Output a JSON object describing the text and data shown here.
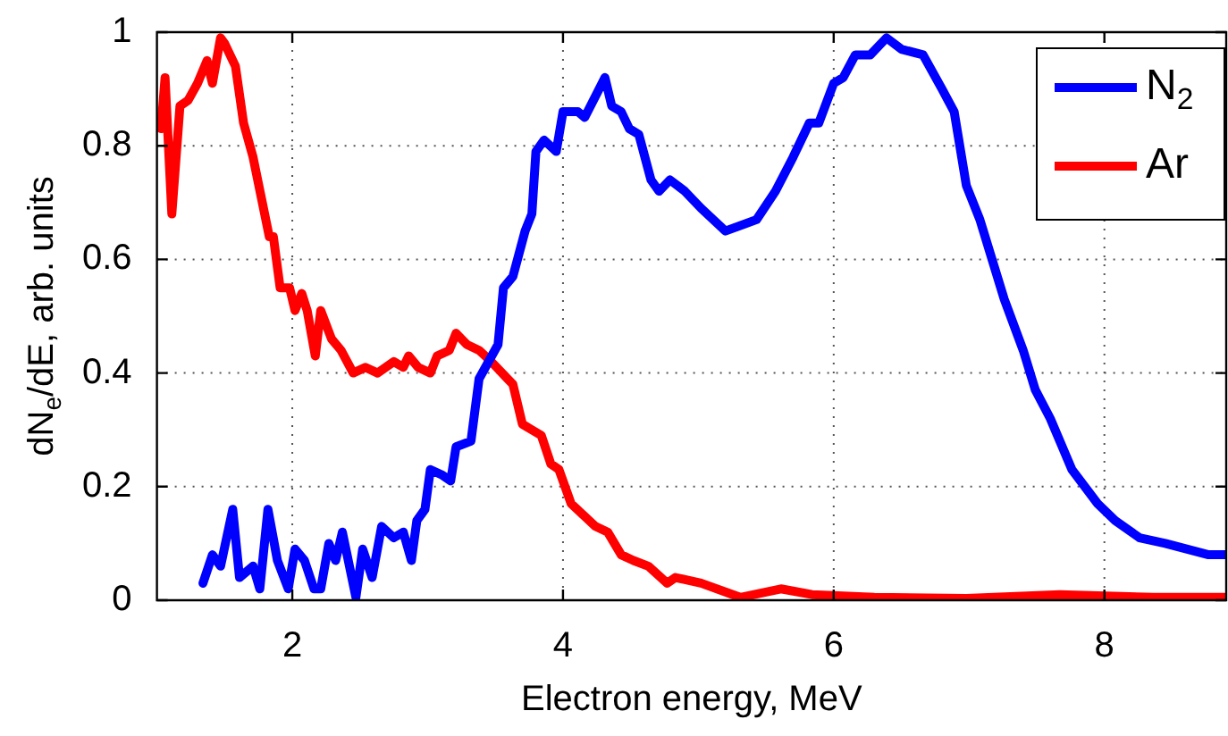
{
  "chart_data": {
    "type": "line",
    "xlabel": "Electron energy, MeV",
    "ylabel": "dN$_{e}$/dE, arb. units",
    "xlim": [
      1,
      8.9
    ],
    "ylim": [
      0,
      1
    ],
    "xticks": [
      2,
      4,
      6,
      8
    ],
    "yticks": [
      0,
      0.2,
      0.4,
      0.6,
      0.8,
      1
    ],
    "grid": true,
    "legend": "top right",
    "marker": "none",
    "line_style": "solid",
    "series": [
      {
        "name": "N$_{2}$",
        "color": "#0000ff",
        "x": [
          1.34,
          1.41,
          1.47,
          1.56,
          1.61,
          1.71,
          1.76,
          1.82,
          1.89,
          1.97,
          2.02,
          2.09,
          2.16,
          2.21,
          2.27,
          2.32,
          2.37,
          2.47,
          2.52,
          2.59,
          2.66,
          2.75,
          2.82,
          2.88,
          2.92,
          2.98,
          3.02,
          3.11,
          3.17,
          3.21,
          3.32,
          3.38,
          3.52,
          3.56,
          3.63,
          3.72,
          3.77,
          3.8,
          3.86,
          3.95,
          4.0,
          4.11,
          4.16,
          4.31,
          4.36,
          4.43,
          4.49,
          4.56,
          4.65,
          4.71,
          4.79,
          4.9,
          5.02,
          5.11,
          5.2,
          5.43,
          5.57,
          5.7,
          5.82,
          5.89,
          6.0,
          6.07,
          6.16,
          6.27,
          6.39,
          6.5,
          6.66,
          6.8,
          6.89,
          6.98,
          7.08,
          7.26,
          7.4,
          7.49,
          7.6,
          7.76,
          7.95,
          8.08,
          8.26,
          8.45,
          8.77,
          8.9
        ],
        "values": [
          0.03,
          0.08,
          0.06,
          0.16,
          0.04,
          0.06,
          0.02,
          0.16,
          0.07,
          0.02,
          0.09,
          0.07,
          0.02,
          0.02,
          0.1,
          0.07,
          0.12,
          0.005,
          0.09,
          0.04,
          0.13,
          0.11,
          0.12,
          0.07,
          0.14,
          0.16,
          0.23,
          0.22,
          0.21,
          0.27,
          0.28,
          0.39,
          0.45,
          0.55,
          0.57,
          0.65,
          0.68,
          0.79,
          0.81,
          0.79,
          0.86,
          0.86,
          0.85,
          0.92,
          0.87,
          0.86,
          0.83,
          0.82,
          0.74,
          0.72,
          0.74,
          0.72,
          0.69,
          0.67,
          0.65,
          0.67,
          0.72,
          0.78,
          0.84,
          0.84,
          0.91,
          0.92,
          0.96,
          0.96,
          0.99,
          0.97,
          0.96,
          0.9,
          0.86,
          0.73,
          0.67,
          0.53,
          0.44,
          0.37,
          0.32,
          0.23,
          0.17,
          0.14,
          0.11,
          0.1,
          0.08,
          0.08
        ]
      },
      {
        "name": "Ar",
        "color": "#ff0000",
        "x": [
          1.03,
          1.06,
          1.11,
          1.17,
          1.23,
          1.3,
          1.37,
          1.41,
          1.47,
          1.5,
          1.58,
          1.64,
          1.71,
          1.77,
          1.83,
          1.86,
          1.91,
          1.98,
          2.02,
          2.07,
          2.11,
          2.17,
          2.21,
          2.29,
          2.36,
          2.45,
          2.54,
          2.63,
          2.75,
          2.82,
          2.86,
          2.93,
          3.02,
          3.07,
          3.16,
          3.21,
          3.29,
          3.38,
          3.47,
          3.59,
          3.63,
          3.7,
          3.77,
          3.84,
          3.91,
          3.97,
          4.06,
          4.15,
          4.24,
          4.33,
          4.43,
          4.52,
          4.63,
          4.77,
          4.83,
          5.02,
          5.31,
          5.61,
          5.84,
          6.3,
          6.98,
          7.67,
          8.36,
          8.9
        ],
        "values": [
          0.83,
          0.92,
          0.68,
          0.87,
          0.88,
          0.91,
          0.95,
          0.91,
          0.99,
          0.98,
          0.94,
          0.84,
          0.78,
          0.71,
          0.64,
          0.64,
          0.55,
          0.55,
          0.51,
          0.54,
          0.51,
          0.43,
          0.51,
          0.46,
          0.44,
          0.4,
          0.41,
          0.4,
          0.42,
          0.41,
          0.43,
          0.41,
          0.4,
          0.43,
          0.44,
          0.47,
          0.45,
          0.44,
          0.42,
          0.39,
          0.38,
          0.31,
          0.3,
          0.29,
          0.24,
          0.23,
          0.17,
          0.15,
          0.13,
          0.12,
          0.08,
          0.07,
          0.06,
          0.03,
          0.04,
          0.03,
          0.005,
          0.02,
          0.01,
          0.005,
          0.003,
          0.01,
          0.005,
          0.005
        ]
      }
    ]
  }
}
